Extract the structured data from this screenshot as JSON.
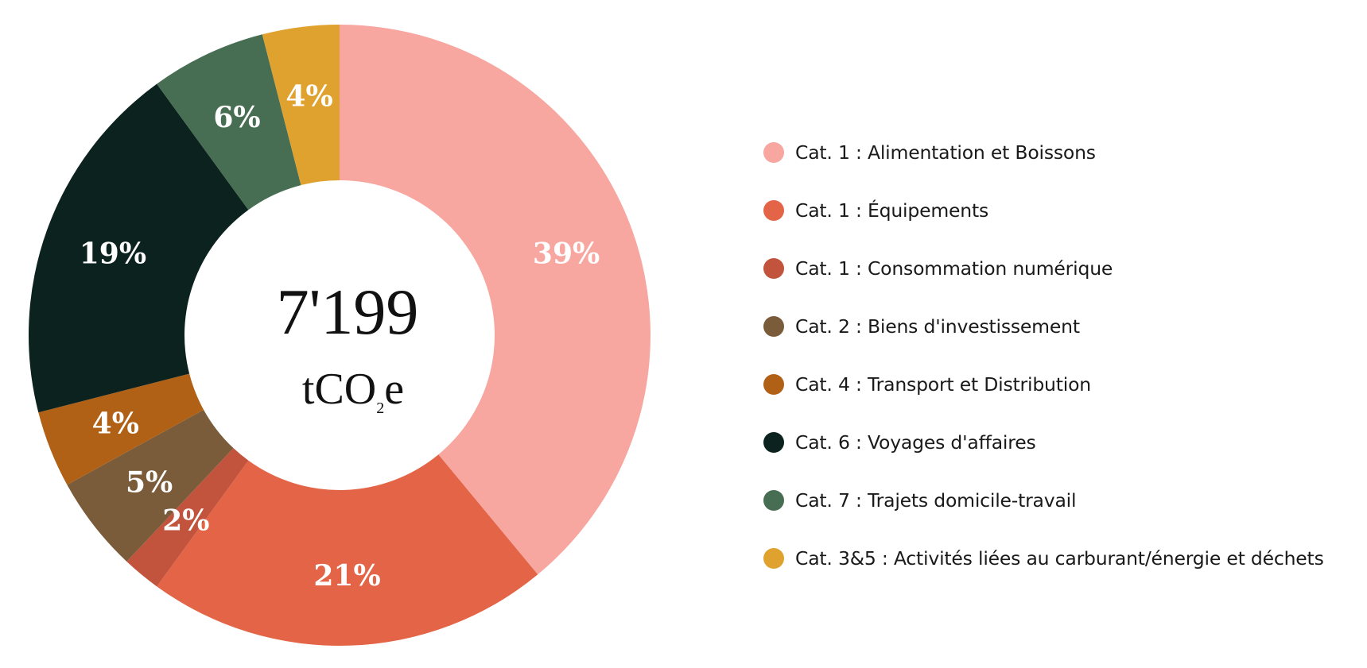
{
  "chart_data": {
    "type": "pie",
    "donut": true,
    "center_total": "7'199",
    "center_unit": {
      "main": "tCO",
      "subscript": "2",
      "suffix": "e"
    },
    "start": "top",
    "direction": "clockwise",
    "slices": [
      {
        "label": "Cat. 1 : Alimentation et Boissons",
        "value": 39,
        "display": "39%",
        "color": "#F7A6A0"
      },
      {
        "label": "Cat. 1 : Équipements",
        "value": 21,
        "display": "21%",
        "color": "#E36446"
      },
      {
        "label": "Cat. 1 : Consommation numérique",
        "value": 2,
        "display": "2%",
        "color": "#C2533C"
      },
      {
        "label": "Cat. 2 : Biens d'investissement",
        "value": 5,
        "display": "5%",
        "color": "#7A5C3A"
      },
      {
        "label": "Cat. 4 : Transport et Distribution",
        "value": 4,
        "display": "4%",
        "color": "#B06116"
      },
      {
        "label": "Cat. 6 : Voyages d'affaires",
        "value": 19,
        "display": "19%",
        "color": "#0C221E"
      },
      {
        "label": "Cat. 7 : Trajets domicile-travail",
        "value": 6,
        "display": "6%",
        "color": "#476E52"
      },
      {
        "label": "Cat. 3&5 : Activités liées au carburant/énergie et déchets",
        "value": 4,
        "display": "4%",
        "color": "#E0A22E"
      }
    ]
  }
}
